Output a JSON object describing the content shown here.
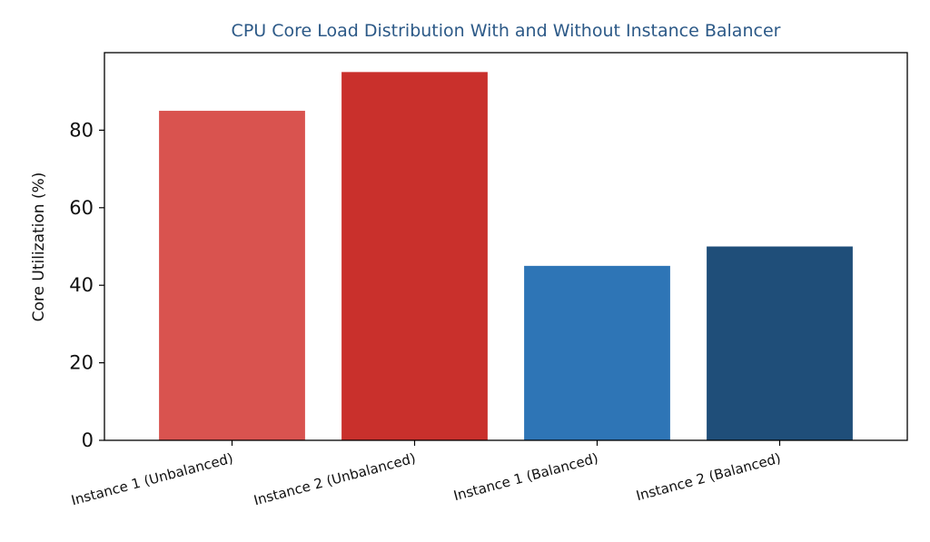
{
  "chart_data": {
    "type": "bar",
    "title": "CPU Core Load Distribution With and Without Instance Balancer",
    "xlabel": "",
    "ylabel": "Core Utilization (%)",
    "categories": [
      "Instance 1 (Unbalanced)",
      "Instance 2 (Unbalanced)",
      "Instance 1 (Balanced)",
      "Instance 2 (Balanced)"
    ],
    "values": [
      85,
      95,
      45,
      50
    ],
    "colors": [
      "#d9534f",
      "#c9302c",
      "#2e75b6",
      "#1f4e79"
    ],
    "ylim": [
      0,
      100
    ],
    "yticks": [
      0,
      20,
      40,
      60,
      80
    ],
    "grid": false,
    "legend": "none"
  }
}
